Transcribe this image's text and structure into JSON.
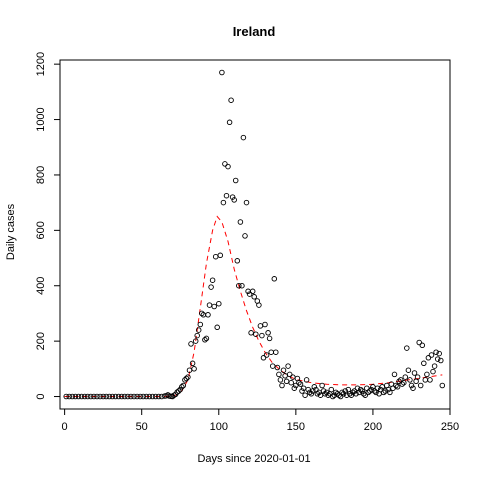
{
  "chart_data": {
    "type": "scatter",
    "title": "Ireland",
    "xlabel": "Days since 2020-01-01",
    "ylabel": "Daily cases",
    "xlim": [
      -3,
      250
    ],
    "ylim": [
      -45,
      1215
    ],
    "x_ticks": [
      0,
      50,
      100,
      150,
      200,
      250
    ],
    "y_ticks": [
      0,
      200,
      400,
      600,
      800,
      1000,
      1200
    ],
    "grid": false,
    "legend": "none",
    "series": [
      {
        "marker": "open-circle",
        "color": "#000000",
        "points": [
          [
            1,
            0
          ],
          [
            3,
            0
          ],
          [
            5,
            0
          ],
          [
            7,
            0
          ],
          [
            9,
            0
          ],
          [
            11,
            0
          ],
          [
            13,
            0
          ],
          [
            15,
            0
          ],
          [
            17,
            0
          ],
          [
            19,
            0
          ],
          [
            21,
            0
          ],
          [
            23,
            0
          ],
          [
            25,
            0
          ],
          [
            27,
            0
          ],
          [
            29,
            0
          ],
          [
            31,
            0
          ],
          [
            33,
            0
          ],
          [
            35,
            0
          ],
          [
            37,
            0
          ],
          [
            39,
            0
          ],
          [
            41,
            0
          ],
          [
            43,
            0
          ],
          [
            45,
            0
          ],
          [
            47,
            0
          ],
          [
            49,
            0
          ],
          [
            51,
            0
          ],
          [
            53,
            0
          ],
          [
            55,
            0
          ],
          [
            57,
            0
          ],
          [
            59,
            0
          ],
          [
            61,
            0
          ],
          [
            63,
            0
          ],
          [
            65,
            2
          ],
          [
            66,
            3
          ],
          [
            67,
            6
          ],
          [
            68,
            2
          ],
          [
            69,
            1
          ],
          [
            70,
            0
          ],
          [
            71,
            5
          ],
          [
            72,
            8
          ],
          [
            73,
            16
          ],
          [
            74,
            20
          ],
          [
            75,
            25
          ],
          [
            76,
            35
          ],
          [
            77,
            40
          ],
          [
            78,
            60
          ],
          [
            79,
            65
          ],
          [
            80,
            70
          ],
          [
            81,
            95
          ],
          [
            82,
            190
          ],
          [
            83,
            120
          ],
          [
            84,
            100
          ],
          [
            85,
            200
          ],
          [
            86,
            220
          ],
          [
            87,
            240
          ],
          [
            88,
            260
          ],
          [
            89,
            300
          ],
          [
            90,
            295
          ],
          [
            91,
            205
          ],
          [
            92,
            210
          ],
          [
            93,
            295
          ],
          [
            94,
            330
          ],
          [
            95,
            395
          ],
          [
            96,
            420
          ],
          [
            97,
            325
          ],
          [
            98,
            505
          ],
          [
            99,
            250
          ],
          [
            100,
            335
          ],
          [
            101,
            510
          ],
          [
            102,
            1170
          ],
          [
            103,
            700
          ],
          [
            104,
            840
          ],
          [
            105,
            725
          ],
          [
            106,
            830
          ],
          [
            107,
            990
          ],
          [
            108,
            1070
          ],
          [
            109,
            720
          ],
          [
            110,
            710
          ],
          [
            111,
            780
          ],
          [
            112,
            490
          ],
          [
            113,
            400
          ],
          [
            114,
            630
          ],
          [
            115,
            400
          ],
          [
            116,
            935
          ],
          [
            117,
            580
          ],
          [
            118,
            700
          ],
          [
            119,
            380
          ],
          [
            120,
            370
          ],
          [
            121,
            230
          ],
          [
            122,
            380
          ],
          [
            123,
            360
          ],
          [
            124,
            225
          ],
          [
            125,
            345
          ],
          [
            126,
            330
          ],
          [
            127,
            255
          ],
          [
            128,
            220
          ],
          [
            129,
            140
          ],
          [
            130,
            260
          ],
          [
            131,
            150
          ],
          [
            132,
            230
          ],
          [
            133,
            210
          ],
          [
            134,
            160
          ],
          [
            135,
            110
          ],
          [
            136,
            425
          ],
          [
            137,
            160
          ],
          [
            138,
            105
          ],
          [
            139,
            80
          ],
          [
            140,
            60
          ],
          [
            141,
            40
          ],
          [
            142,
            95
          ],
          [
            143,
            75
          ],
          [
            144,
            55
          ],
          [
            145,
            110
          ],
          [
            146,
            80
          ],
          [
            147,
            50
          ],
          [
            148,
            70
          ],
          [
            149,
            30
          ],
          [
            150,
            40
          ],
          [
            151,
            65
          ],
          [
            152,
            50
          ],
          [
            153,
            45
          ],
          [
            154,
            20
          ],
          [
            155,
            30
          ],
          [
            156,
            5
          ],
          [
            157,
            60
          ],
          [
            158,
            25
          ],
          [
            159,
            15
          ],
          [
            160,
            10
          ],
          [
            161,
            20
          ],
          [
            162,
            35
          ],
          [
            163,
            25
          ],
          [
            164,
            10
          ],
          [
            165,
            15
          ],
          [
            166,
            5
          ],
          [
            167,
            40
          ],
          [
            168,
            20
          ],
          [
            169,
            10
          ],
          [
            170,
            15
          ],
          [
            171,
            5
          ],
          [
            172,
            10
          ],
          [
            173,
            25
          ],
          [
            174,
            0
          ],
          [
            175,
            5
          ],
          [
            176,
            15
          ],
          [
            177,
            10
          ],
          [
            178,
            5
          ],
          [
            179,
            0
          ],
          [
            180,
            15
          ],
          [
            181,
            10
          ],
          [
            182,
            20
          ],
          [
            183,
            5
          ],
          [
            184,
            25
          ],
          [
            185,
            10
          ],
          [
            186,
            5
          ],
          [
            187,
            15
          ],
          [
            188,
            20
          ],
          [
            189,
            10
          ],
          [
            190,
            30
          ],
          [
            191,
            15
          ],
          [
            192,
            25
          ],
          [
            193,
            20
          ],
          [
            194,
            10
          ],
          [
            195,
            5
          ],
          [
            196,
            30
          ],
          [
            197,
            15
          ],
          [
            198,
            20
          ],
          [
            199,
            25
          ],
          [
            200,
            35
          ],
          [
            201,
            20
          ],
          [
            202,
            15
          ],
          [
            203,
            30
          ],
          [
            204,
            10
          ],
          [
            205,
            25
          ],
          [
            206,
            35
          ],
          [
            207,
            15
          ],
          [
            208,
            20
          ],
          [
            209,
            40
          ],
          [
            210,
            25
          ],
          [
            211,
            15
          ],
          [
            212,
            45
          ],
          [
            213,
            30
          ],
          [
            214,
            80
          ],
          [
            215,
            40
          ],
          [
            216,
            35
          ],
          [
            217,
            55
          ],
          [
            218,
            60
          ],
          [
            219,
            45
          ],
          [
            220,
            50
          ],
          [
            221,
            70
          ],
          [
            222,
            175
          ],
          [
            223,
            95
          ],
          [
            224,
            60
          ],
          [
            225,
            40
          ],
          [
            226,
            30
          ],
          [
            227,
            85
          ],
          [
            228,
            55
          ],
          [
            229,
            70
          ],
          [
            230,
            195
          ],
          [
            231,
            40
          ],
          [
            232,
            185
          ],
          [
            233,
            120
          ],
          [
            234,
            60
          ],
          [
            235,
            80
          ],
          [
            236,
            140
          ],
          [
            237,
            60
          ],
          [
            238,
            150
          ],
          [
            239,
            90
          ],
          [
            240,
            110
          ],
          [
            241,
            160
          ],
          [
            242,
            135
          ],
          [
            243,
            155
          ],
          [
            244,
            130
          ],
          [
            245,
            40
          ]
        ]
      },
      {
        "type": "line",
        "style": "dashed",
        "color": "#ff0000",
        "points": [
          [
            0,
            0
          ],
          [
            65,
            0
          ],
          [
            72,
            5
          ],
          [
            76,
            20
          ],
          [
            80,
            60
          ],
          [
            84,
            160
          ],
          [
            88,
            320
          ],
          [
            92,
            480
          ],
          [
            96,
            600
          ],
          [
            99,
            650
          ],
          [
            102,
            630
          ],
          [
            106,
            560
          ],
          [
            110,
            460
          ],
          [
            114,
            380
          ],
          [
            118,
            310
          ],
          [
            122,
            250
          ],
          [
            126,
            200
          ],
          [
            130,
            160
          ],
          [
            135,
            120
          ],
          [
            140,
            95
          ],
          [
            145,
            75
          ],
          [
            150,
            62
          ],
          [
            160,
            50
          ],
          [
            170,
            44
          ],
          [
            180,
            42
          ],
          [
            190,
            42
          ],
          [
            200,
            44
          ],
          [
            210,
            50
          ],
          [
            220,
            58
          ],
          [
            230,
            66
          ],
          [
            240,
            74
          ],
          [
            245,
            78
          ]
        ]
      }
    ]
  }
}
